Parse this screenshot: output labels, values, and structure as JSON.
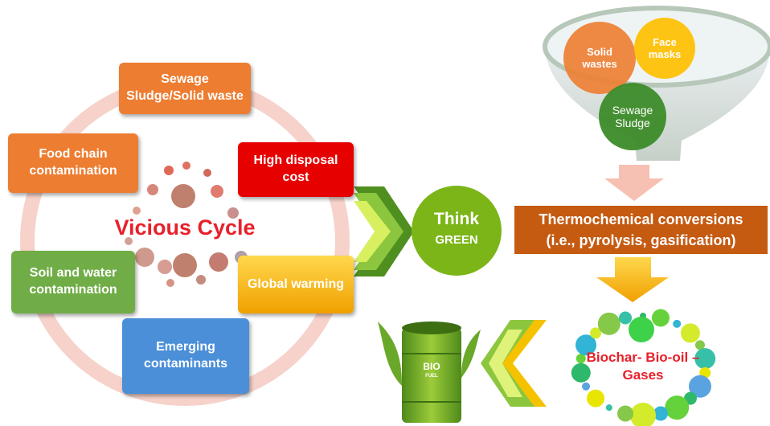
{
  "cycle": {
    "center": "Vicious Cycle",
    "nodes": [
      {
        "label": "Sewage Sludge/Solid waste"
      },
      {
        "label": "High disposal cost"
      },
      {
        "label": "Global warming"
      },
      {
        "label": "Emerging contaminants"
      },
      {
        "label": "Soil and water contamination"
      },
      {
        "label": "Food chain contamination"
      }
    ]
  },
  "think": {
    "line1": "Think",
    "line2": "GREEN"
  },
  "funnel": {
    "items": [
      "Solid wastes",
      "Face masks",
      "Sewage Sludge"
    ]
  },
  "process": {
    "lines": [
      "Thermochemical conversions",
      "(i.e., pyrolysis, gasification)"
    ]
  },
  "products": "Biochar- Bio-oil – Gases",
  "barrel": {
    "line1": "BIO",
    "line2": "FUEL"
  }
}
